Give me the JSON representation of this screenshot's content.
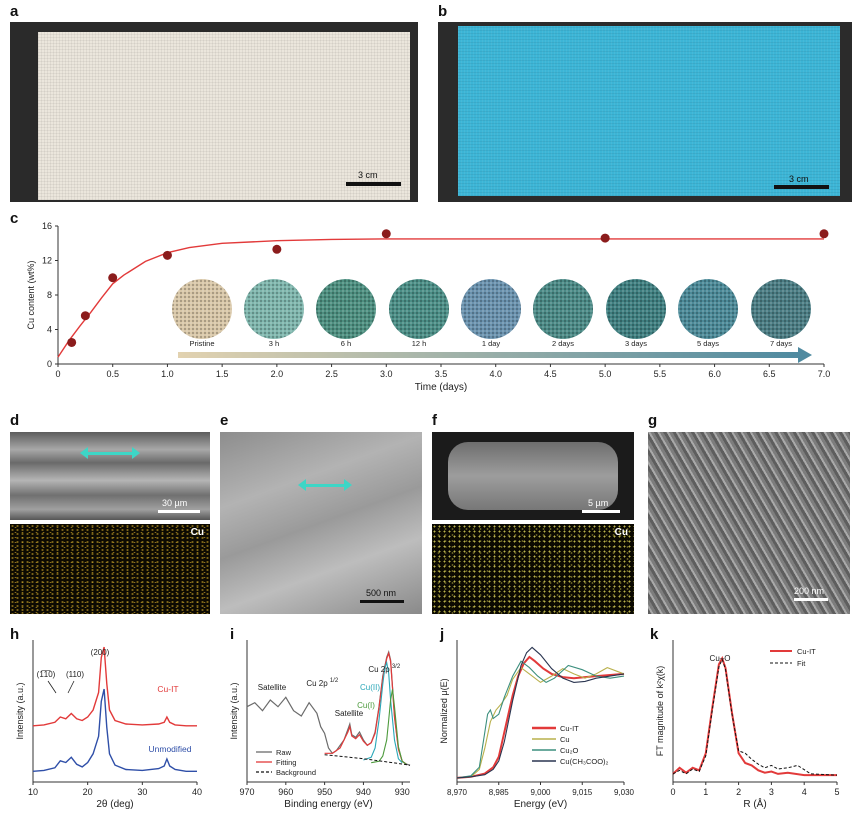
{
  "figure": {
    "labels": {
      "a": "a",
      "b": "b",
      "c": "c",
      "d": "d",
      "e": "e",
      "f": "f",
      "g": "g",
      "h": "h",
      "i": "i",
      "j": "j",
      "k": "k"
    },
    "colors": {
      "red": "#e23a3a",
      "blue": "#2f4fa8",
      "cyan": "#3dd6c6",
      "grey": "#6b6b6b",
      "teal": "#3c8f7e",
      "navy": "#2a3550",
      "cuLime": "#b9b04b"
    }
  },
  "panel_a": {
    "scalebar": "3 cm"
  },
  "panel_b": {
    "scalebar": "3 cm"
  },
  "panel_c": {
    "samples": [
      "Pristine",
      "3 h",
      "6 h",
      "12 h",
      "1 day",
      "2 days",
      "3 days",
      "5 days",
      "7 days"
    ]
  },
  "panel_d": {
    "scalebar": "30 µm",
    "element": "Cu"
  },
  "panel_e": {
    "scalebar": "500 nm"
  },
  "panel_f": {
    "scalebar": "5 µm",
    "element": "Cu"
  },
  "panel_g": {
    "scalebar": "200 nm"
  },
  "panel_h": {
    "peaks": {
      "p110bar": "(1̅1̅0)",
      "p110": "(110)",
      "p200": "(200)"
    },
    "legend": {
      "cuit": "Cu-IT",
      "unmod": "Unmodified"
    }
  },
  "panel_i": {
    "annot": {
      "satellite1": "Satellite",
      "cu2p12": "Cu 2p",
      "cu2p12_sup": "1/2",
      "satellite2": "Satellite",
      "cu2p32": "Cu 2p",
      "cu2p32_sup": "3/2",
      "cuII": "Cu(II)",
      "cuI": "Cu(I)"
    },
    "legend": [
      "Raw",
      "Fitting",
      "Background"
    ]
  },
  "panel_j": {
    "legend": [
      "Cu-IT",
      "Cu",
      "Cu₂O",
      "Cu(CH₃COO)₂"
    ]
  },
  "panel_k": {
    "annot": {
      "cuo": "Cu–O"
    },
    "legend": [
      "Cu-IT",
      "Fit"
    ]
  },
  "chart_data": [
    {
      "id": "c",
      "type": "scatter",
      "xlabel": "Time (days)",
      "ylabel": "Cu content (wt%)",
      "xlim": [
        0,
        7.0
      ],
      "ylim": [
        0,
        16
      ],
      "xticks": [
        "0",
        "0.5",
        "1.0",
        "1.5",
        "2.0",
        "2.5",
        "3.0",
        "3.5",
        "4.0",
        "4.5",
        "5.0",
        "5.5",
        "6.0",
        "6.5",
        "7.0"
      ],
      "yticks": [
        "0",
        "4",
        "8",
        "12",
        "16"
      ],
      "grid": false,
      "points": {
        "x": [
          0.125,
          0.25,
          0.5,
          1.0,
          2.0,
          3.0,
          5.0,
          7.0
        ],
        "y": [
          2.5,
          5.6,
          10.0,
          12.6,
          13.3,
          15.1,
          14.6,
          15.1
        ]
      },
      "fit": {
        "x": [
          0.0,
          0.1,
          0.2,
          0.3,
          0.4,
          0.5,
          0.6,
          0.8,
          1.0,
          1.2,
          1.5,
          2.0,
          2.5,
          3.0,
          4.0,
          5.0,
          6.0,
          7.0
        ],
        "y": [
          0.8,
          2.7,
          4.4,
          6.0,
          7.7,
          9.3,
          10.3,
          11.9,
          12.9,
          13.5,
          14.0,
          14.3,
          14.45,
          14.5,
          14.5,
          14.5,
          14.5,
          14.5
        ]
      }
    },
    {
      "id": "h",
      "type": "line",
      "xlabel": "2θ (deg)",
      "ylabel": "Intensity (a.u.)",
      "xlim": [
        10,
        40
      ],
      "xticks": [
        "10",
        "20",
        "30",
        "40"
      ],
      "series": [
        {
          "name": "Cu-IT",
          "x": [
            10,
            12,
            14,
            15,
            16,
            17,
            18,
            19,
            20,
            21,
            22,
            22.5,
            23,
            23.5,
            24,
            25,
            27,
            30,
            33,
            34,
            34.5,
            35,
            36,
            38,
            40
          ],
          "y": [
            0.62,
            0.63,
            0.66,
            0.72,
            0.7,
            0.76,
            0.7,
            0.68,
            0.72,
            0.8,
            1.0,
            1.4,
            1.52,
            1.1,
            0.8,
            0.68,
            0.64,
            0.63,
            0.64,
            0.66,
            0.72,
            0.66,
            0.63,
            0.62,
            0.62
          ]
        },
        {
          "name": "Unmodified",
          "x": [
            10,
            12,
            14,
            15,
            16,
            17,
            18,
            19,
            20,
            21,
            22,
            22.5,
            23,
            23.5,
            24,
            25,
            27,
            30,
            33,
            34,
            34.5,
            35,
            36,
            38,
            40
          ],
          "y": [
            0.1,
            0.11,
            0.14,
            0.22,
            0.2,
            0.26,
            0.18,
            0.15,
            0.2,
            0.3,
            0.5,
            0.9,
            1.04,
            0.6,
            0.3,
            0.17,
            0.12,
            0.11,
            0.13,
            0.16,
            0.24,
            0.16,
            0.12,
            0.1,
            0.1
          ]
        }
      ]
    },
    {
      "id": "i",
      "type": "line",
      "xlabel": "Binding energy (eV)",
      "ylabel": "Intensity (a.u.)",
      "xlim": [
        970,
        928
      ],
      "xticks": [
        "970",
        "960",
        "950",
        "940",
        "930"
      ],
      "series": [
        {
          "name": "Raw",
          "x": [
            970,
            968,
            966,
            964,
            962,
            960,
            958,
            956,
            954,
            952,
            951,
            950,
            949,
            948,
            947,
            946,
            945,
            944,
            943.5,
            943,
            942,
            941,
            940,
            939,
            938,
            937,
            936,
            935,
            934,
            933.5,
            933,
            932.5,
            932,
            931,
            930,
            929,
            928
          ],
          "y": [
            0.55,
            0.58,
            0.52,
            0.6,
            0.55,
            0.62,
            0.52,
            0.48,
            0.58,
            0.5,
            0.4,
            0.35,
            0.24,
            0.2,
            0.22,
            0.26,
            0.3,
            0.38,
            0.42,
            0.34,
            0.32,
            0.36,
            0.3,
            0.26,
            0.28,
            0.36,
            0.55,
            0.78,
            0.92,
            0.96,
            0.9,
            0.7,
            0.48,
            0.24,
            0.14,
            0.12,
            0.11
          ]
        },
        {
          "name": "Fitting",
          "x": [
            950,
            948,
            946,
            944,
            943.5,
            943,
            942,
            941,
            940,
            939,
            938,
            937,
            936,
            935,
            934,
            933.5,
            933,
            932.5,
            932,
            931,
            930,
            929
          ],
          "y": [
            0.2,
            0.2,
            0.24,
            0.36,
            0.4,
            0.33,
            0.31,
            0.34,
            0.29,
            0.26,
            0.28,
            0.35,
            0.54,
            0.77,
            0.91,
            0.95,
            0.89,
            0.69,
            0.47,
            0.23,
            0.14,
            0.12
          ]
        },
        {
          "name": "Cu(II)",
          "x": [
            940,
            938,
            937,
            936,
            935,
            934.5,
            934,
            933.5,
            933,
            932,
            931,
            930
          ],
          "y": [
            0.15,
            0.17,
            0.24,
            0.45,
            0.72,
            0.84,
            0.88,
            0.8,
            0.6,
            0.3,
            0.16,
            0.13
          ]
        },
        {
          "name": "Cu(I)",
          "x": [
            938,
            936,
            935,
            934,
            933.5,
            933,
            932.5,
            932,
            931,
            930,
            929
          ],
          "y": [
            0.13,
            0.14,
            0.18,
            0.3,
            0.45,
            0.6,
            0.68,
            0.55,
            0.25,
            0.14,
            0.12
          ]
        },
        {
          "name": "Background",
          "x": [
            950,
            940,
            930,
            928
          ],
          "y": [
            0.19,
            0.16,
            0.12,
            0.11
          ]
        }
      ]
    },
    {
      "id": "j",
      "type": "line",
      "xlabel": "Energy (eV)",
      "ylabel": "Normalized μ(E)",
      "xlim": [
        8970,
        9030
      ],
      "xticks": [
        "8,970",
        "8,985",
        "9,000",
        "9,015",
        "9,030"
      ],
      "series": [
        {
          "name": "Cu-IT",
          "x": [
            8970,
            8975,
            8980,
            8983,
            8985,
            8987,
            8990,
            8992,
            8994,
            8996,
            8998,
            9001,
            9004,
            9008,
            9012,
            9016,
            9020,
            9025,
            9030
          ],
          "y": [
            0.02,
            0.03,
            0.06,
            0.12,
            0.22,
            0.45,
            0.8,
            0.98,
            1.1,
            1.16,
            1.12,
            1.05,
            1.0,
            0.97,
            0.96,
            0.97,
            0.98,
            0.99,
            1.0
          ]
        },
        {
          "name": "Cu",
          "x": [
            8970,
            8975,
            8978,
            8980,
            8982,
            8984,
            8986,
            8988,
            8990,
            8993,
            8996,
            9000,
            9004,
            9008,
            9012,
            9016,
            9020,
            9024,
            9028,
            9030
          ],
          "y": [
            0.02,
            0.03,
            0.1,
            0.3,
            0.55,
            0.66,
            0.72,
            0.8,
            0.95,
            1.06,
            1.0,
            0.92,
            0.98,
            1.05,
            1.0,
            0.96,
            1.0,
            1.06,
            1.02,
            1.0
          ]
        },
        {
          "name": "Cu₂O",
          "x": [
            8970,
            8975,
            8978,
            8980,
            8981,
            8982,
            8983,
            8985,
            8987,
            8990,
            8993,
            8996,
            8999,
            9002,
            9005,
            9010,
            9015,
            9020,
            9025,
            9030
          ],
          "y": [
            0.02,
            0.04,
            0.12,
            0.45,
            0.62,
            0.66,
            0.58,
            0.62,
            0.78,
            0.98,
            1.12,
            1.06,
            0.98,
            0.92,
            0.96,
            1.08,
            1.04,
            0.98,
            0.96,
            0.98
          ]
        },
        {
          "name": "Cu(CH₃COO)₂",
          "x": [
            8970,
            8975,
            8980,
            8983,
            8985,
            8987,
            8990,
            8993,
            8995,
            8997,
            9000,
            9004,
            9008,
            9012,
            9016,
            9020,
            9025,
            9030
          ],
          "y": [
            0.02,
            0.03,
            0.05,
            0.1,
            0.18,
            0.36,
            0.75,
            1.08,
            1.2,
            1.25,
            1.18,
            1.05,
            0.96,
            0.92,
            0.93,
            0.96,
            0.98,
            1.0
          ]
        }
      ]
    },
    {
      "id": "k",
      "type": "line",
      "xlabel": "R (Å)",
      "ylabel": "FT magnitude of k²χ(k)",
      "xlim": [
        0,
        5
      ],
      "xticks": [
        "0",
        "1",
        "2",
        "3",
        "4",
        "5"
      ],
      "series": [
        {
          "name": "Cu-IT",
          "x": [
            0,
            0.2,
            0.4,
            0.6,
            0.8,
            1.0,
            1.2,
            1.4,
            1.5,
            1.6,
            1.8,
            2.0,
            2.2,
            2.4,
            2.6,
            2.8,
            3.0,
            3.2,
            3.5,
            4.0,
            4.5,
            5.0
          ],
          "y": [
            0.05,
            0.1,
            0.06,
            0.1,
            0.08,
            0.22,
            0.6,
            0.95,
            1.0,
            0.92,
            0.55,
            0.22,
            0.14,
            0.12,
            0.08,
            0.06,
            0.07,
            0.05,
            0.06,
            0.04,
            0.04,
            0.04
          ]
        },
        {
          "name": "Fit",
          "x": [
            0,
            0.2,
            0.4,
            0.6,
            0.8,
            1.0,
            1.2,
            1.4,
            1.5,
            1.6,
            1.8,
            2.0,
            2.2,
            2.4,
            2.6,
            2.8,
            3.0,
            3.2,
            3.5,
            3.8,
            4.2,
            5.0
          ],
          "y": [
            0.05,
            0.08,
            0.05,
            0.09,
            0.07,
            0.2,
            0.58,
            0.93,
            0.99,
            0.91,
            0.54,
            0.24,
            0.22,
            0.17,
            0.13,
            0.1,
            0.12,
            0.09,
            0.1,
            0.12,
            0.05,
            0.04
          ]
        }
      ]
    }
  ]
}
